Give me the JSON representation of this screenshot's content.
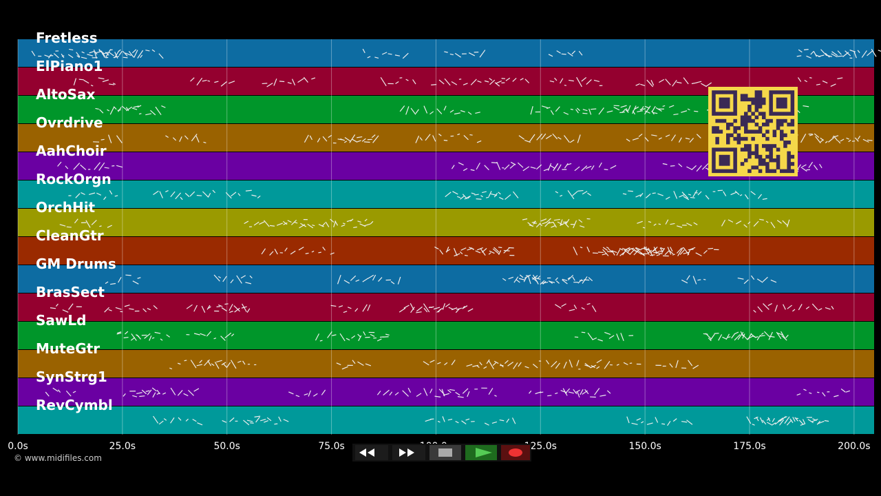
{
  "timeline": {
    "xlim": [
      0,
      204.8
    ],
    "xticks": [
      {
        "value": 0,
        "label": "0.0s"
      },
      {
        "value": 25,
        "label": "25.0s"
      },
      {
        "value": 50,
        "label": "50.0s"
      },
      {
        "value": 75,
        "label": "75.0s"
      },
      {
        "value": 100,
        "label": "100.0s"
      },
      {
        "value": 125,
        "label": "125.0s"
      },
      {
        "value": 150,
        "label": "150.0s"
      },
      {
        "value": 175,
        "label": "175.0s"
      },
      {
        "value": 200,
        "label": "200.0s"
      }
    ]
  },
  "tracks": [
    {
      "name": "Fretless",
      "color": "#0d6ca2"
    },
    {
      "name": "ElPiano1",
      "color": "#94002f"
    },
    {
      "name": "AltoSax",
      "color": "#00962a"
    },
    {
      "name": "Ovrdrive",
      "color": "#9a6200"
    },
    {
      "name": "AahChoir",
      "color": "#6a00a2"
    },
    {
      "name": "RockOrgn",
      "color": "#00999a"
    },
    {
      "name": "OrchHit",
      "color": "#9a9a00"
    },
    {
      "name": "CleanGtr",
      "color": "#9a2a00"
    },
    {
      "name": "GM Drums",
      "color": "#0d6ca2"
    },
    {
      "name": "BrasSect",
      "color": "#94002f"
    },
    {
      "name": "SawLd",
      "color": "#00962a"
    },
    {
      "name": "MuteGtr",
      "color": "#9a6200"
    },
    {
      "name": "SynStrg1",
      "color": "#6a00a2"
    },
    {
      "name": "RevCymbl",
      "color": "#00999a"
    }
  ],
  "copyright": "© www.midifiles.com"
}
